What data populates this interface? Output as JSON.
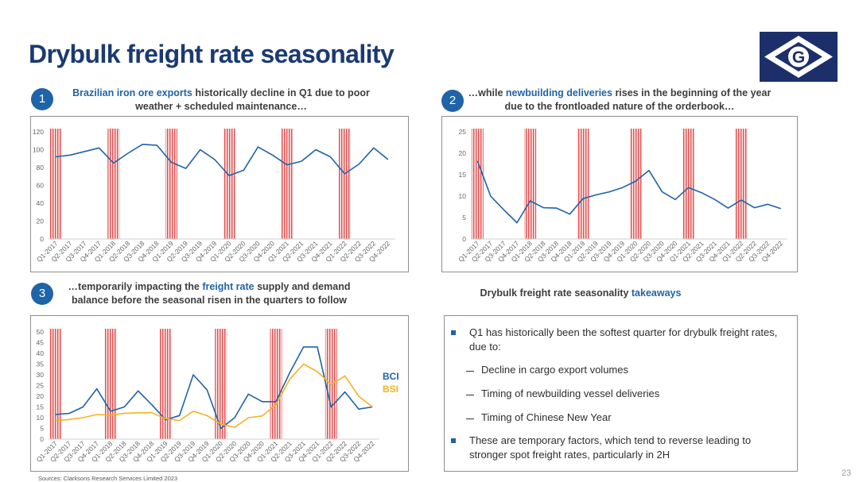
{
  "page": {
    "title": "Drybulk freight rate seasonality",
    "source": "Sources: Clarksons Research Services Limited 2023",
    "page_number": "23"
  },
  "logo": {
    "letter": "G"
  },
  "colors": {
    "accent": "#1f63a8",
    "title": "#1b3a72",
    "bsi": "#f5b324",
    "highlight": "#e05050"
  },
  "panels": [
    {
      "number": "1",
      "caption_hl": "Brazilian iron ore exports",
      "caption_rest": " historically decline in Q1 due to poor weather + scheduled maintenance…"
    },
    {
      "number": "2",
      "caption_pre": "…while ",
      "caption_hl": "newbuilding deliveries",
      "caption_rest": " rises in the beginning of the year due to the frontloaded nature of the orderbook…"
    },
    {
      "number": "3",
      "caption_pre": "…temporarily impacting the ",
      "caption_hl": "freight rate",
      "caption_rest": " supply and demand balance before the seasonal risen in the quarters to follow"
    }
  ],
  "takeaways": {
    "title_pre": "Drybulk freight rate seasonality ",
    "title_hl": "takeaways",
    "bullet1": "Q1 has historically been the softest quarter for drybulk freight rates, due to:",
    "subs": [
      "Decline in cargo export volumes",
      "Timing of newbuilding vessel deliveries",
      "Timing of Chinese New Year"
    ],
    "bullet2": "These are temporary factors, which tend to reverse leading to stronger spot freight rates, particularly in 2H"
  },
  "chart_data": [
    {
      "type": "line",
      "title": "",
      "x": [
        "Q1-2017",
        "Q2-2017",
        "Q3-2017",
        "Q4-2017",
        "Q1-2018",
        "Q2-2018",
        "Q3-2018",
        "Q4-2018",
        "Q1-2019",
        "Q2-2019",
        "Q3-2019",
        "Q4-2019",
        "Q1-2020",
        "Q2-2020",
        "Q3-2020",
        "Q4-2020",
        "Q1-2021",
        "Q2-2021",
        "Q3-2021",
        "Q4-2021",
        "Q1-2022",
        "Q2-2022",
        "Q3-2022",
        "Q4-2022"
      ],
      "series": [
        {
          "values": [
            92,
            94,
            98,
            102,
            85,
            96,
            106,
            105,
            86,
            79,
            100,
            89,
            71,
            77,
            103,
            94,
            83,
            87,
            100,
            92,
            73,
            84,
            102,
            89
          ]
        }
      ],
      "ylim": [
        0,
        120
      ],
      "yticks": [
        0,
        20,
        40,
        60,
        80,
        100,
        120
      ],
      "highlight_quarters": [
        "Q1-2017",
        "Q1-2018",
        "Q1-2019",
        "Q1-2020",
        "Q1-2021",
        "Q1-2022"
      ]
    },
    {
      "type": "line",
      "title": "",
      "x": [
        "Q1-2017",
        "Q2-2017",
        "Q3-2017",
        "Q4-2017",
        "Q1-2018",
        "Q2-2018",
        "Q3-2018",
        "Q4-2018",
        "Q1-2019",
        "Q2-2019",
        "Q3-2019",
        "Q4-2019",
        "Q1-2020",
        "Q2-2020",
        "Q3-2020",
        "Q4-2020",
        "Q1-2021",
        "Q2-2021",
        "Q3-2021",
        "Q4-2021",
        "Q1-2022",
        "Q2-2022",
        "Q3-2022",
        "Q4-2022"
      ],
      "series": [
        {
          "values": [
            18.2,
            10,
            6.8,
            3.8,
            8.9,
            7.3,
            7.2,
            5.8,
            9.4,
            10.3,
            11,
            12,
            13.5,
            16,
            11,
            9.2,
            12,
            10.8,
            9.2,
            7.2,
            9.1,
            7.3,
            8.1,
            7.1
          ]
        }
      ],
      "ylim": [
        0,
        25
      ],
      "yticks": [
        0,
        5,
        10,
        15,
        20,
        25
      ],
      "highlight_quarters": [
        "Q1-2017",
        "Q1-2018",
        "Q1-2019",
        "Q1-2020",
        "Q1-2021",
        "Q1-2022"
      ]
    },
    {
      "type": "line",
      "title": "",
      "x": [
        "Q1-2017",
        "Q2-2017",
        "Q3-2017",
        "Q4-2017",
        "Q1-2018",
        "Q2-2018",
        "Q3-2018",
        "Q4-2018",
        "Q1-2019",
        "Q2-2019",
        "Q3-2019",
        "Q4-2019",
        "Q1-2020",
        "Q2-2020",
        "Q3-2020",
        "Q4-2020",
        "Q1-2021",
        "Q2-2021",
        "Q3-2021",
        "Q4-2021",
        "Q1-2022",
        "Q2-2022",
        "Q3-2022",
        "Q4-2022"
      ],
      "series": [
        {
          "name": "BCI",
          "color": "#1f63a8",
          "values": [
            11.5,
            12,
            15,
            23.5,
            13,
            15,
            22.5,
            16,
            9,
            11,
            30,
            23,
            5,
            10,
            21,
            17.5,
            17.5,
            31,
            43,
            43,
            15,
            22,
            14,
            15
          ]
        },
        {
          "name": "BSI",
          "color": "#f5b324",
          "values": [
            8.5,
            9.2,
            10,
            11.5,
            11.2,
            12,
            12.3,
            12.3,
            9.5,
            8.7,
            13,
            11,
            7,
            5.5,
            10,
            10.8,
            16,
            28,
            35,
            31.5,
            25.5,
            29.5,
            20,
            15
          ]
        }
      ],
      "ylim": [
        0,
        50
      ],
      "yticks": [
        0,
        5,
        10,
        15,
        20,
        25,
        30,
        35,
        40,
        45,
        50
      ],
      "highlight_quarters": [
        "Q1-2017",
        "Q1-2018",
        "Q1-2019",
        "Q1-2020",
        "Q1-2021",
        "Q1-2022"
      ]
    }
  ]
}
